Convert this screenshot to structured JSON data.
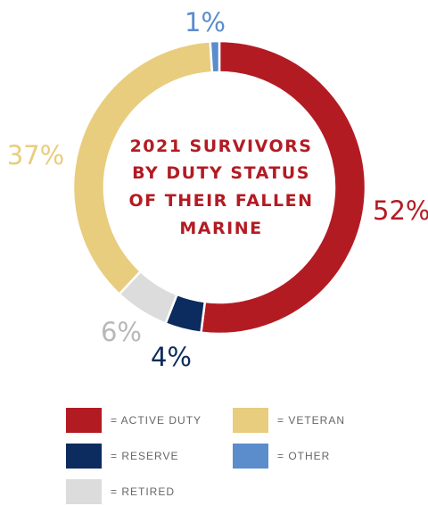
{
  "chart_data": {
    "type": "pie",
    "title_lines": [
      "2021 SURVIVORS",
      "BY DUTY STATUS",
      "OF THEIR FALLEN",
      "MARINE"
    ],
    "slices": [
      {
        "key": "active",
        "value": 52,
        "label": "52%",
        "color": "#b31b23"
      },
      {
        "key": "reserve",
        "value": 4,
        "label": "4%",
        "color": "#0c2b5e"
      },
      {
        "key": "retired",
        "value": 6,
        "label": "6%",
        "color": "#dcdcdc"
      },
      {
        "key": "veteran",
        "value": 37,
        "label": "37%",
        "color": "#e8cd7e"
      },
      {
        "key": "other",
        "value": 1,
        "label": "1%",
        "color": "#5b8ccc"
      }
    ],
    "legend": [
      {
        "key": "active",
        "text": "= ACTIVE DUTY",
        "color": "#b31b23"
      },
      {
        "key": "veteran",
        "text": "= VETERAN",
        "color": "#e8cd7e"
      },
      {
        "key": "reserve",
        "text": "= RESERVE",
        "color": "#0c2b5e"
      },
      {
        "key": "other",
        "text": "= OTHER",
        "color": "#5b8ccc"
      },
      {
        "key": "retired",
        "text": "= RETIRED",
        "color": "#dcdcdc"
      }
    ],
    "title_color": "#b31b23",
    "label_colors": {
      "active": "#b31b23",
      "reserve": "#0c2b5e",
      "retired": "#b8b8b8",
      "veteran": "#e8cd7e",
      "other": "#5b8ccc"
    }
  }
}
